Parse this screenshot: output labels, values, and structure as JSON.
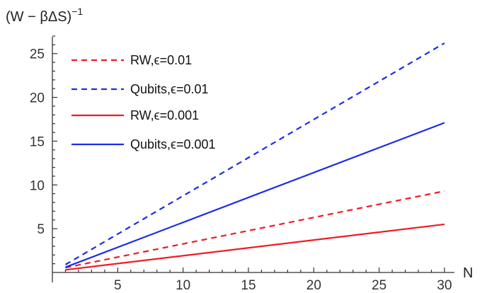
{
  "chart_data": {
    "type": "line",
    "xlabel": "N",
    "ylabel": "(W − βΔS)",
    "ylabel_exponent": "−1",
    "xlim": [
      0,
      30
    ],
    "ylim": [
      0,
      27
    ],
    "x_ticks": [
      5,
      10,
      15,
      20,
      25,
      30
    ],
    "y_ticks": [
      5,
      10,
      15,
      20,
      25
    ],
    "grid": false,
    "legend_position": "top-left",
    "series": [
      {
        "name": "RW,ϵ=0.01",
        "color": "#ee1c24",
        "dash": true,
        "x": [
          1,
          30
        ],
        "y": [
          0.55,
          9.3
        ]
      },
      {
        "name": "Qubits,ϵ=0.01",
        "color": "#1c2de6",
        "dash": true,
        "x": [
          1,
          30
        ],
        "y": [
          0.9,
          26.2
        ]
      },
      {
        "name": "RW,ϵ=0.001",
        "color": "#ee1c24",
        "dash": false,
        "x": [
          1,
          30
        ],
        "y": [
          0.3,
          5.5
        ]
      },
      {
        "name": "Qubits,ϵ=0.001",
        "color": "#1c2de6",
        "dash": false,
        "x": [
          1,
          30
        ],
        "y": [
          0.6,
          17.1
        ]
      }
    ]
  }
}
